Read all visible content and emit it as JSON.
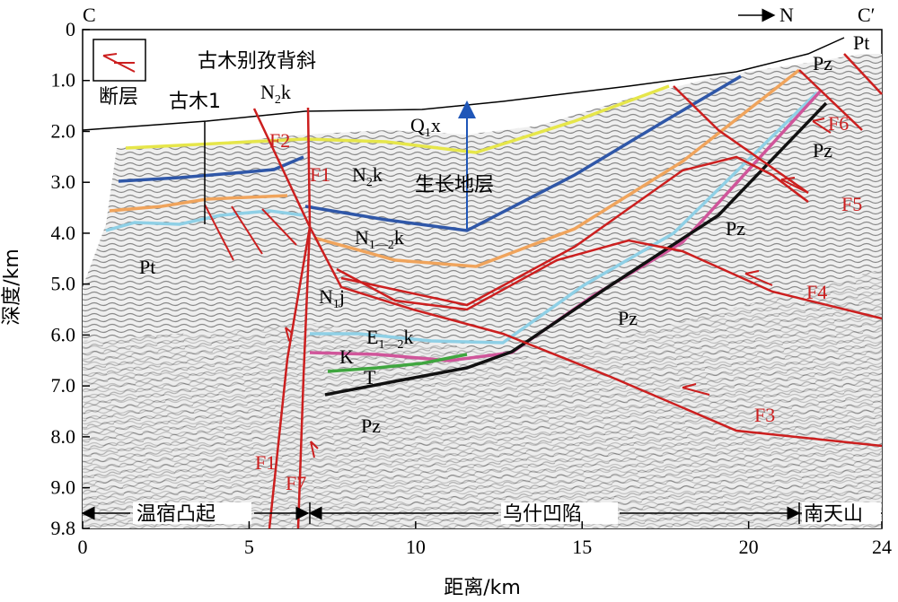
{
  "section": {
    "start_label": "C",
    "end_label": "C′",
    "north_label": "N"
  },
  "legend": {
    "fault_label": "断层",
    "fault_color": "#cc1f1f"
  },
  "anticline_label": "古木别孜背斜",
  "well": {
    "name": "古木1"
  },
  "growth_strata_label": "生长地层",
  "axes": {
    "y_label": "深度/km",
    "x_label": "距离/km",
    "y_ticks": [
      "0",
      "1.0",
      "2.0",
      "3.0",
      "4.0",
      "5.0",
      "6.0",
      "7.0",
      "8.0",
      "9.0",
      "9.8"
    ],
    "x_ticks": [
      "0",
      "5",
      "10",
      "15",
      "20",
      "24"
    ]
  },
  "regions": {
    "left": "温宿凸起",
    "middle": "乌什凹陷",
    "right": "南天山"
  },
  "strata": {
    "n2k_top": {
      "base": "N",
      "sub": "2",
      "tail": "k"
    },
    "q1x": {
      "base": "Q",
      "sub": "1",
      "tail": "x"
    },
    "n2k": {
      "base": "N",
      "sub": "2",
      "tail": "k"
    },
    "n12k": {
      "base": "N",
      "sub": "1—2",
      "tail": "k"
    },
    "n1j": {
      "base": "N",
      "sub": "1",
      "tail": "j"
    },
    "e12k": {
      "base": "E",
      "sub": "1—2",
      "tail": "k"
    },
    "k": "K",
    "t": "T",
    "pt_left": "Pt",
    "pt_right": "Pt",
    "pz_right1": "Pz",
    "pz_right2": "Pz",
    "pz_mid": "Pz",
    "pz_center": "Pz",
    "pz_bottom": "Pz"
  },
  "faults": {
    "f1_top": "F1",
    "f2": "F2",
    "f1_bottom": "F1",
    "f7": "F7",
    "f3": "F3",
    "f4": "F4",
    "f5": "F5",
    "f6": "F6"
  },
  "horizon_colors": {
    "q1x_base": "#e6e64a",
    "n2k_base": "#2f57a8",
    "n12k_base": "#f0a45c",
    "n1j_base": "#8fd0e6",
    "e12k_base": "#d0559a",
    "k_base": "#3fa63f",
    "basement": "#111111",
    "fault": "#cc1f1f",
    "growth_arrow": "#1f56b8"
  }
}
